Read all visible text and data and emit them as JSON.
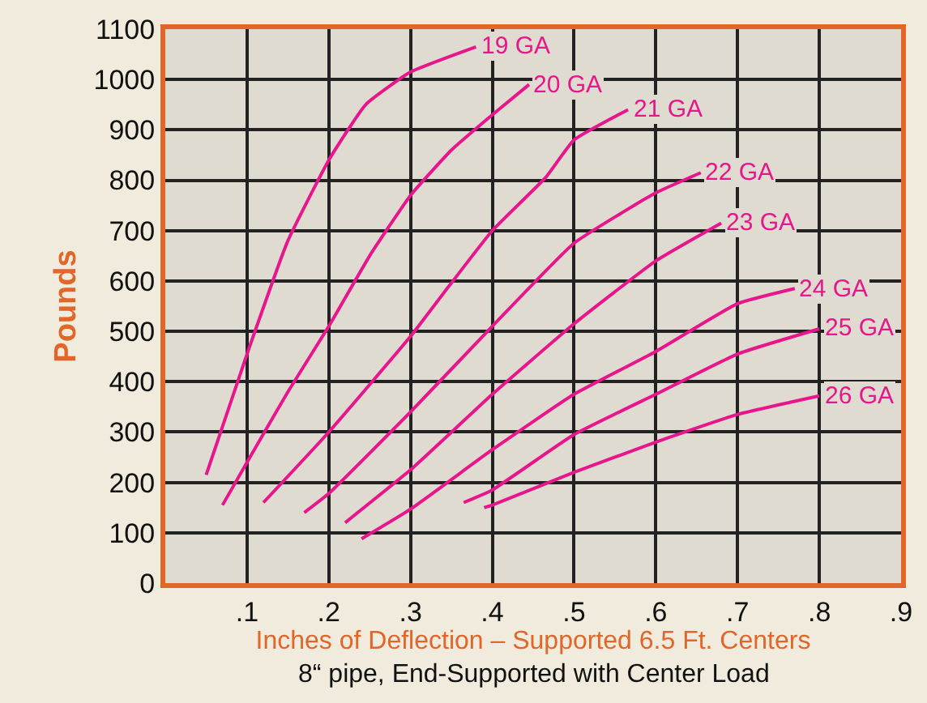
{
  "chart_data": {
    "type": "line",
    "xlabel": "Inches of Deflection – Supported 6.5 Ft. Centers",
    "annotations": [
      "8“ pipe, End-Supported with Center Load"
    ],
    "ylabel": "Pounds",
    "xlim": [
      0,
      0.9
    ],
    "ylim": [
      0,
      1100
    ],
    "xticks": [
      {
        "value": 0.1,
        "label": ".1"
      },
      {
        "value": 0.2,
        "label": ".2"
      },
      {
        "value": 0.3,
        "label": ".3"
      },
      {
        "value": 0.4,
        "label": ".4"
      },
      {
        "value": 0.5,
        "label": ".5"
      },
      {
        "value": 0.6,
        "label": ".6"
      },
      {
        "value": 0.7,
        "label": ".7"
      },
      {
        "value": 0.8,
        "label": ".8"
      },
      {
        "value": 0.9,
        "label": ".9"
      }
    ],
    "yticks": [
      0,
      100,
      200,
      300,
      400,
      500,
      600,
      700,
      800,
      900,
      1000,
      1100
    ],
    "grid": true,
    "marker": "none",
    "line_style": "solid",
    "series": [
      {
        "name": "19 GA",
        "color": "#e8168c",
        "x": [
          0.05,
          0.1,
          0.15,
          0.2,
          0.245,
          0.3,
          0.38
        ],
        "values": [
          215,
          455,
          680,
          840,
          950,
          1015,
          1065
        ]
      },
      {
        "name": "20 GA",
        "color": "#e8168c",
        "x": [
          0.07,
          0.1,
          0.15,
          0.2,
          0.25,
          0.3,
          0.35,
          0.4,
          0.445
        ],
        "values": [
          155,
          240,
          380,
          510,
          650,
          770,
          860,
          930,
          990
        ]
      },
      {
        "name": "21 GA",
        "color": "#e8168c",
        "x": [
          0.12,
          0.2,
          0.3,
          0.34,
          0.4,
          0.465,
          0.5,
          0.566
        ],
        "values": [
          160,
          300,
          490,
          575,
          700,
          805,
          880,
          940
        ]
      },
      {
        "name": "22 GA",
        "color": "#e8168c",
        "x": [
          0.17,
          0.2,
          0.3,
          0.4,
          0.5,
          0.6,
          0.655
        ],
        "values": [
          140,
          178,
          340,
          510,
          675,
          775,
          815
        ]
      },
      {
        "name": "23 GA",
        "color": "#e8168c",
        "x": [
          0.22,
          0.3,
          0.4,
          0.5,
          0.6,
          0.68
        ],
        "values": [
          120,
          225,
          375,
          515,
          640,
          715
        ]
      },
      {
        "name": "24 GA",
        "color": "#e8168c",
        "x": [
          0.24,
          0.3,
          0.4,
          0.5,
          0.6,
          0.7,
          0.77
        ],
        "values": [
          88,
          147,
          265,
          375,
          460,
          555,
          585
        ]
      },
      {
        "name": "25 GA",
        "color": "#e8168c",
        "x": [
          0.365,
          0.4,
          0.5,
          0.6,
          0.7,
          0.8
        ],
        "values": [
          160,
          185,
          295,
          375,
          455,
          505
        ]
      },
      {
        "name": "26 GA",
        "color": "#e8168c",
        "x": [
          0.39,
          0.4,
          0.5,
          0.6,
          0.7,
          0.8
        ],
        "values": [
          150,
          155,
          220,
          280,
          335,
          372
        ]
      }
    ]
  }
}
